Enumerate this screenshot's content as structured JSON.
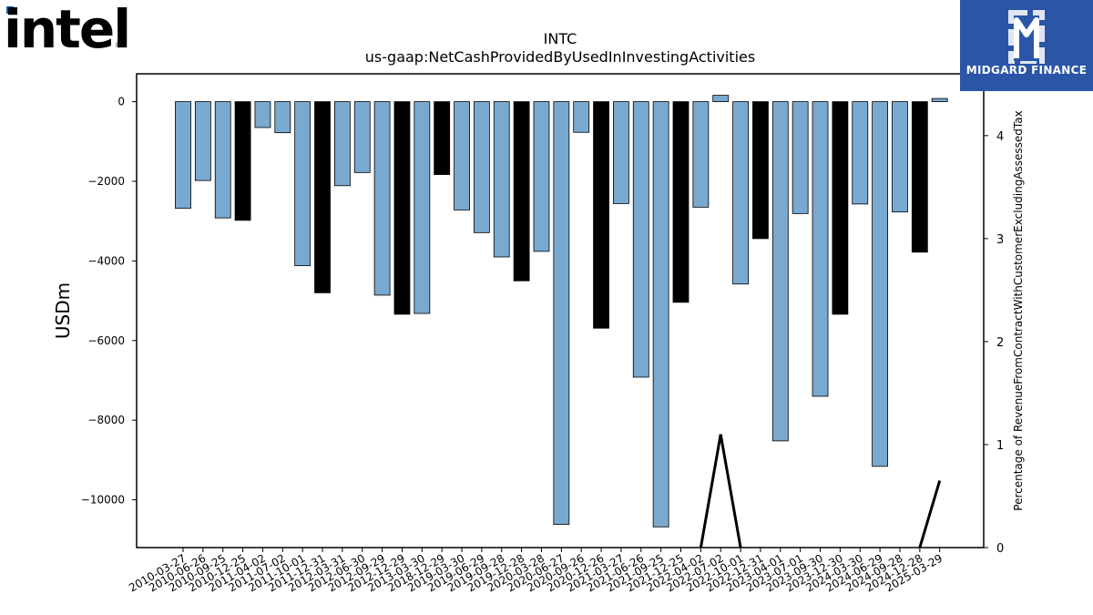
{
  "brand": {
    "logo_text": "intel",
    "partner_name": "MIDGARD FINANCE"
  },
  "colors": {
    "regular_bar": "#7aa9d0",
    "q4_bar": "#000000",
    "line": "#000000",
    "partner_bg": "#2b56a8"
  },
  "chart_data": {
    "type": "bar",
    "title": "INTC",
    "subtitle": "us-gaap:NetCashProvidedByUsedInInvestingActivities",
    "ylabel": "USDm",
    "y2label": "Percentage of RevenueFromContractWithCustomerExcludingAssessedTax",
    "ylim": [
      -11200,
      700
    ],
    "y2lim": [
      0,
      4.6
    ],
    "yticks": [
      0,
      -2000,
      -4000,
      -6000,
      -8000,
      -10000
    ],
    "y2ticks": [
      0,
      1,
      2,
      3,
      4
    ],
    "grid": false,
    "categories": [
      "2010-03-27",
      "2010-06-26",
      "2010-09-25",
      "2010-12-25",
      "2011-04-02",
      "2011-07-02",
      "2011-10-01",
      "2011-12-31",
      "2012-03-31",
      "2012-06-30",
      "2012-09-29",
      "2012-12-29",
      "2013-03-30",
      "2018-12-29",
      "2019-03-30",
      "2019-06-29",
      "2019-09-28",
      "2019-12-28",
      "2020-03-28",
      "2020-06-27",
      "2020-09-26",
      "2020-12-26",
      "2021-03-27",
      "2021-06-26",
      "2021-09-25",
      "2021-12-25",
      "2022-04-02",
      "2022-07-02",
      "2022-10-01",
      "2022-12-31",
      "2023-04-01",
      "2023-07-01",
      "2023-09-30",
      "2023-12-30",
      "2024-03-30",
      "2024-06-29",
      "2024-09-28",
      "2024-12-28",
      "2025-03-29"
    ],
    "values": [
      -2680,
      -1980,
      -2920,
      -2980,
      -650,
      -780,
      -4120,
      -4800,
      -2110,
      -1780,
      -4860,
      -5340,
      -5320,
      -1830,
      -2720,
      -3290,
      -3900,
      -4500,
      -3760,
      -10620,
      -770,
      -5690,
      -2560,
      -6920,
      -10680,
      -5040,
      -2650,
      160,
      -4580,
      -3440,
      -8520,
      -2810,
      -7400,
      -5340,
      -2570,
      -9160,
      -2770,
      -3780,
      80
    ],
    "highlight": [
      false,
      false,
      false,
      true,
      false,
      false,
      false,
      true,
      false,
      false,
      false,
      true,
      false,
      true,
      false,
      false,
      false,
      true,
      false,
      false,
      false,
      true,
      false,
      false,
      false,
      true,
      false,
      false,
      false,
      true,
      false,
      false,
      false,
      true,
      false,
      false,
      false,
      true,
      false
    ],
    "line_series": [
      {
        "index": 26,
        "value": 0
      },
      {
        "index": 27,
        "value": 1.1
      },
      {
        "index": 28,
        "value": 0
      },
      {
        "index": 37,
        "value": 0
      },
      {
        "index": 38,
        "value": 0.65
      }
    ]
  }
}
